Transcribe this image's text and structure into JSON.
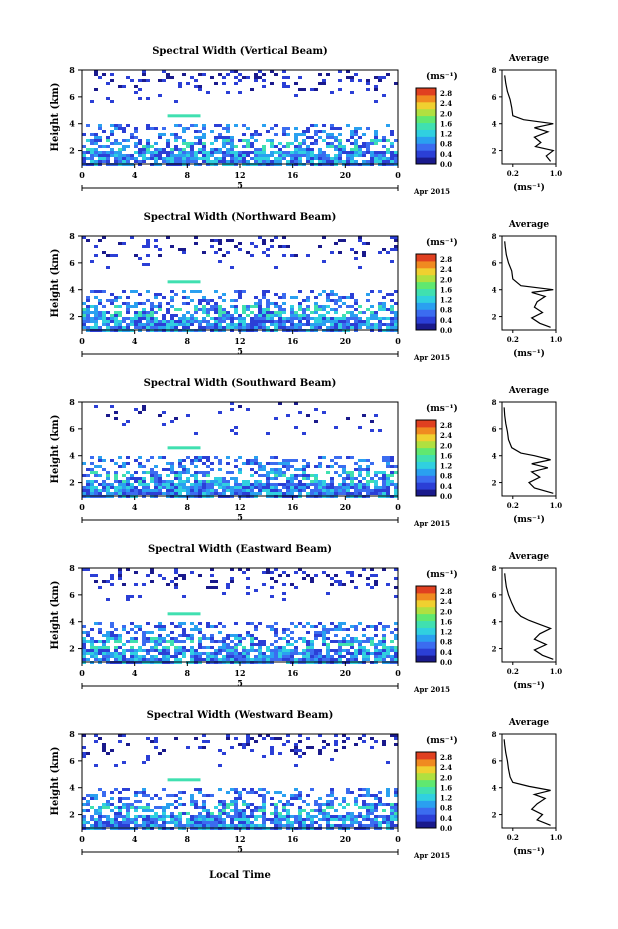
{
  "figure": {
    "xlabel": "Local Time",
    "date_label": "Apr 2015",
    "day_label": "5",
    "colorbar_unit": "(ms⁻¹)",
    "avg_title": "Average",
    "avg_xlabel": "(ms⁻¹)"
  },
  "chart_data": [
    {
      "type": "heatmap",
      "title": "Spectral Width (Vertical Beam)",
      "ylabel": "Height (km)",
      "x_ticks": [
        "0",
        "4",
        "8",
        "12",
        "16",
        "20",
        "0"
      ],
      "y_ticks": [
        "2",
        "4",
        "6",
        "8"
      ],
      "xlim": [
        0,
        24
      ],
      "ylim": [
        1,
        8
      ],
      "colorbar": {
        "ticks": [
          "0.0",
          "0.4",
          "0.8",
          "1.2",
          "1.6",
          "2.0",
          "2.4",
          "2.8"
        ],
        "range": [
          0,
          3.0
        ]
      },
      "average": {
        "type": "line",
        "xlim": [
          0,
          1.0
        ],
        "x_ticks": [
          "0.2",
          "1.0"
        ],
        "y_ticks": [
          "2",
          "4",
          "6",
          "8"
        ],
        "profile": [
          [
            1.2,
            0.9
          ],
          [
            1.6,
            0.82
          ],
          [
            2.0,
            0.95
          ],
          [
            2.3,
            0.62
          ],
          [
            2.6,
            0.72
          ],
          [
            3.0,
            0.6
          ],
          [
            3.4,
            0.85
          ],
          [
            3.7,
            0.6
          ],
          [
            4.0,
            0.95
          ],
          [
            4.3,
            0.4
          ],
          [
            4.6,
            0.2
          ],
          [
            5.2,
            0.18
          ],
          [
            5.8,
            0.15
          ],
          [
            6.4,
            0.1
          ],
          [
            7.0,
            0.07
          ],
          [
            7.6,
            0.05
          ]
        ]
      }
    },
    {
      "type": "heatmap",
      "title": "Spectral Width (Northward Beam)",
      "ylabel": "Height (km)",
      "x_ticks": [
        "0",
        "4",
        "8",
        "12",
        "16",
        "20",
        "0"
      ],
      "y_ticks": [
        "2",
        "4",
        "6",
        "8"
      ],
      "xlim": [
        0,
        24
      ],
      "ylim": [
        1,
        8
      ],
      "colorbar": {
        "ticks": [
          "0.0",
          "0.4",
          "0.8",
          "1.2",
          "1.6",
          "2.0",
          "2.4",
          "2.8"
        ],
        "range": [
          0,
          3.0
        ]
      },
      "average": {
        "type": "line",
        "xlim": [
          0,
          1.0
        ],
        "x_ticks": [
          "0.2",
          "1.0"
        ],
        "y_ticks": [
          "2",
          "4",
          "6",
          "8"
        ],
        "profile": [
          [
            1.2,
            0.9
          ],
          [
            1.5,
            0.7
          ],
          [
            1.9,
            0.55
          ],
          [
            2.3,
            0.75
          ],
          [
            2.7,
            0.6
          ],
          [
            3.1,
            0.65
          ],
          [
            3.5,
            0.8
          ],
          [
            3.8,
            0.55
          ],
          [
            4.0,
            0.95
          ],
          [
            4.3,
            0.35
          ],
          [
            4.8,
            0.2
          ],
          [
            5.4,
            0.18
          ],
          [
            6.0,
            0.12
          ],
          [
            6.6,
            0.08
          ],
          [
            7.2,
            0.06
          ],
          [
            7.6,
            0.05
          ]
        ]
      }
    },
    {
      "type": "heatmap",
      "title": "Spectral Width (Southward Beam)",
      "ylabel": "Height (km)",
      "x_ticks": [
        "0",
        "4",
        "8",
        "12",
        "16",
        "20",
        "0"
      ],
      "y_ticks": [
        "2",
        "4",
        "6",
        "8"
      ],
      "xlim": [
        0,
        24
      ],
      "ylim": [
        1,
        8
      ],
      "colorbar": {
        "ticks": [
          "0.0",
          "0.4",
          "0.8",
          "1.2",
          "1.6",
          "2.0",
          "2.4",
          "2.8"
        ],
        "range": [
          0,
          3.0
        ]
      },
      "average": {
        "type": "line",
        "xlim": [
          0,
          1.0
        ],
        "x_ticks": [
          "0.2",
          "1.0"
        ],
        "y_ticks": [
          "2",
          "4",
          "6",
          "8"
        ],
        "profile": [
          [
            1.2,
            0.95
          ],
          [
            1.6,
            0.6
          ],
          [
            2.0,
            0.5
          ],
          [
            2.4,
            0.7
          ],
          [
            2.8,
            0.55
          ],
          [
            3.1,
            0.85
          ],
          [
            3.4,
            0.55
          ],
          [
            3.7,
            0.9
          ],
          [
            4.0,
            0.6
          ],
          [
            4.2,
            0.35
          ],
          [
            4.6,
            0.18
          ],
          [
            5.2,
            0.12
          ],
          [
            5.8,
            0.1
          ],
          [
            6.4,
            0.07
          ],
          [
            7.0,
            0.05
          ],
          [
            7.6,
            0.04
          ]
        ]
      }
    },
    {
      "type": "heatmap",
      "title": "Spectral Width (Eastward Beam)",
      "ylabel": "Height (km)",
      "x_ticks": [
        "0",
        "4",
        "8",
        "12",
        "16",
        "20",
        "0"
      ],
      "y_ticks": [
        "2",
        "4",
        "6",
        "8"
      ],
      "xlim": [
        0,
        24
      ],
      "ylim": [
        1,
        8
      ],
      "colorbar": {
        "ticks": [
          "0.0",
          "0.4",
          "0.8",
          "1.2",
          "1.6",
          "2.0",
          "2.4",
          "2.8"
        ],
        "range": [
          0,
          3.0
        ]
      },
      "average": {
        "type": "line",
        "xlim": [
          0,
          1.0
        ],
        "x_ticks": [
          "0.2",
          "1.0"
        ],
        "y_ticks": [
          "2",
          "4",
          "6",
          "8"
        ],
        "profile": [
          [
            1.2,
            0.95
          ],
          [
            1.5,
            0.75
          ],
          [
            1.9,
            0.6
          ],
          [
            2.3,
            0.82
          ],
          [
            2.7,
            0.6
          ],
          [
            3.1,
            0.7
          ],
          [
            3.5,
            0.9
          ],
          [
            3.8,
            0.7
          ],
          [
            4.1,
            0.5
          ],
          [
            4.4,
            0.35
          ],
          [
            4.8,
            0.25
          ],
          [
            5.4,
            0.18
          ],
          [
            6.0,
            0.12
          ],
          [
            6.6,
            0.08
          ],
          [
            7.2,
            0.06
          ],
          [
            7.6,
            0.05
          ]
        ]
      }
    },
    {
      "type": "heatmap",
      "title": "Spectral Width (Westward Beam)",
      "ylabel": "Height (km)",
      "x_ticks": [
        "0",
        "4",
        "8",
        "12",
        "16",
        "20",
        "0"
      ],
      "y_ticks": [
        "2",
        "4",
        "6",
        "8"
      ],
      "xlim": [
        0,
        24
      ],
      "ylim": [
        1,
        8
      ],
      "colorbar": {
        "ticks": [
          "0.0",
          "0.4",
          "0.8",
          "1.2",
          "1.6",
          "2.0",
          "2.4",
          "2.8"
        ],
        "range": [
          0,
          3.0
        ]
      },
      "average": {
        "type": "line",
        "xlim": [
          0,
          1.0
        ],
        "x_ticks": [
          "0.2",
          "1.0"
        ],
        "y_ticks": [
          "2",
          "4",
          "6",
          "8"
        ],
        "profile": [
          [
            1.2,
            0.9
          ],
          [
            1.6,
            0.65
          ],
          [
            2.0,
            0.75
          ],
          [
            2.4,
            0.55
          ],
          [
            2.8,
            0.65
          ],
          [
            3.2,
            0.8
          ],
          [
            3.5,
            0.6
          ],
          [
            3.8,
            0.9
          ],
          [
            4.1,
            0.5
          ],
          [
            4.4,
            0.2
          ],
          [
            4.8,
            0.15
          ],
          [
            5.4,
            0.12
          ],
          [
            6.0,
            0.1
          ],
          [
            6.6,
            0.07
          ],
          [
            7.2,
            0.05
          ],
          [
            7.6,
            0.04
          ]
        ]
      }
    }
  ],
  "colormap": [
    "#1a1a8c",
    "#2b3fd6",
    "#3b6cf0",
    "#2aa0f0",
    "#30d0e0",
    "#40e0b0",
    "#60e870",
    "#b0e040",
    "#f0d030",
    "#f08a20",
    "#e04020"
  ]
}
